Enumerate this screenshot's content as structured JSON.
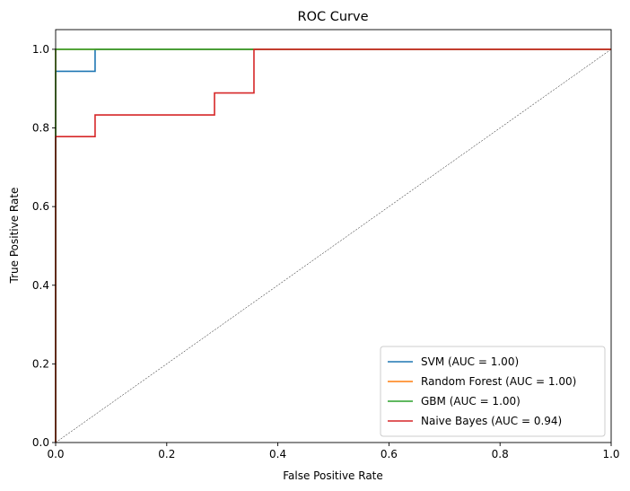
{
  "chart_data": {
    "type": "line",
    "title": "ROC Curve",
    "xlabel": "False Positive Rate",
    "ylabel": "True Positive Rate",
    "xlim": [
      0.0,
      1.0
    ],
    "ylim": [
      0.0,
      1.05
    ],
    "xticks": [
      0.0,
      0.2,
      0.4,
      0.6,
      0.8,
      1.0
    ],
    "yticks": [
      0.0,
      0.2,
      0.4,
      0.6,
      0.8,
      1.0
    ],
    "xtick_labels": [
      "0.0",
      "0.2",
      "0.4",
      "0.6",
      "0.8",
      "1.0"
    ],
    "ytick_labels": [
      "0.0",
      "0.2",
      "0.4",
      "0.6",
      "0.8",
      "1.0"
    ],
    "grid": false,
    "legend_position": "lower-right",
    "diagonal_reference": {
      "x": [
        0,
        1
      ],
      "y": [
        0,
        1
      ],
      "color": "#000000",
      "style": "dashed"
    },
    "series": [
      {
        "name": "SVM (AUC = 1.00)",
        "color": "#1f77b4",
        "x": [
          0.0,
          0.0,
          0.071,
          0.071,
          1.0
        ],
        "y": [
          0.0,
          0.944,
          0.944,
          1.0,
          1.0
        ]
      },
      {
        "name": "Random Forest (AUC = 1.00)",
        "color": "#ff7f0e",
        "x": [
          0.0,
          0.0,
          1.0
        ],
        "y": [
          0.0,
          1.0,
          1.0
        ]
      },
      {
        "name": "GBM (AUC = 1.00)",
        "color": "#2ca02c",
        "x": [
          0.0,
          0.0,
          1.0
        ],
        "y": [
          0.0,
          1.0,
          1.0
        ]
      },
      {
        "name": "Naive Bayes (AUC = 0.94)",
        "color": "#d62728",
        "x": [
          0.0,
          0.0,
          0.071,
          0.071,
          0.286,
          0.286,
          0.357,
          0.357,
          1.0
        ],
        "y": [
          0.0,
          0.778,
          0.778,
          0.833,
          0.833,
          0.889,
          0.889,
          1.0,
          1.0
        ]
      }
    ]
  }
}
